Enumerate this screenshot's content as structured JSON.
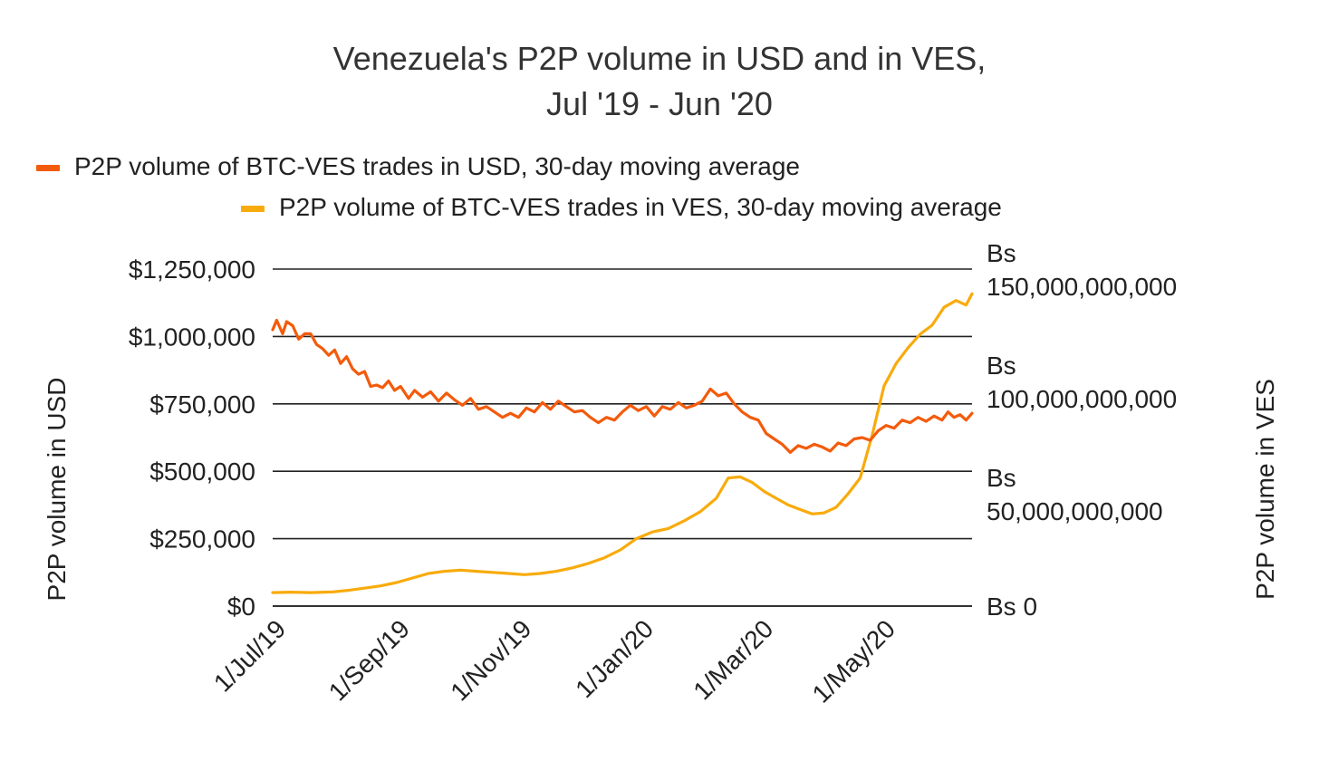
{
  "chart_data": {
    "type": "line",
    "title": [
      "Venezuela's P2P volume in USD and in VES,",
      "Jul '19 - Jun '20"
    ],
    "legend_position": "top",
    "grid": true,
    "x_axis": {
      "range": [
        "2019-07-01",
        "2020-06-15"
      ],
      "tick_dates": [
        "2019-07-01",
        "2019-09-01",
        "2019-11-01",
        "2020-01-01",
        "2020-03-01",
        "2020-05-01"
      ],
      "tick_labels": [
        "1/Jul/19",
        "1/Sep/19",
        "1/Nov/19",
        "1/Jan/20",
        "1/Mar/20",
        "1/May/20"
      ]
    },
    "y_axis_left": {
      "label": "P2P volume in USD",
      "range": [
        0,
        1250000
      ],
      "ticks": [
        0,
        250000,
        500000,
        750000,
        1000000,
        1250000
      ],
      "tick_labels": [
        "$0",
        "$250,000",
        "$500,000",
        "$750,000",
        "$1,000,000",
        "$1,250,000"
      ]
    },
    "y_axis_right": {
      "label": "P2P volume in VES",
      "range": [
        0,
        150000000000
      ],
      "ticks": [
        0,
        50000000000,
        100000000000,
        150000000000
      ],
      "tick_labels": [
        [
          "Bs 0"
        ],
        [
          "Bs",
          "50,000,000,000"
        ],
        [
          "Bs",
          "100,000,000,000"
        ],
        [
          "Bs",
          "150,000,000,000"
        ]
      ]
    },
    "series": [
      {
        "name": "P2P volume of BTC-VES trades in USD, 30-day moving average",
        "axis": "left",
        "color": "#f35b0c",
        "points": [
          [
            "2019-07-01",
            1025000
          ],
          [
            "2019-07-03",
            1060000
          ],
          [
            "2019-07-06",
            1010000
          ],
          [
            "2019-07-08",
            1055000
          ],
          [
            "2019-07-11",
            1040000
          ],
          [
            "2019-07-14",
            990000
          ],
          [
            "2019-07-17",
            1010000
          ],
          [
            "2019-07-20",
            1010000
          ],
          [
            "2019-07-23",
            970000
          ],
          [
            "2019-07-26",
            955000
          ],
          [
            "2019-07-29",
            930000
          ],
          [
            "2019-08-01",
            950000
          ],
          [
            "2019-08-04",
            900000
          ],
          [
            "2019-08-07",
            925000
          ],
          [
            "2019-08-10",
            880000
          ],
          [
            "2019-08-13",
            860000
          ],
          [
            "2019-08-16",
            870000
          ],
          [
            "2019-08-19",
            815000
          ],
          [
            "2019-08-22",
            820000
          ],
          [
            "2019-08-25",
            810000
          ],
          [
            "2019-08-28",
            835000
          ],
          [
            "2019-08-31",
            800000
          ],
          [
            "2019-09-03",
            815000
          ],
          [
            "2019-09-07",
            770000
          ],
          [
            "2019-09-10",
            800000
          ],
          [
            "2019-09-14",
            775000
          ],
          [
            "2019-09-18",
            795000
          ],
          [
            "2019-09-22",
            760000
          ],
          [
            "2019-09-26",
            790000
          ],
          [
            "2019-09-30",
            765000
          ],
          [
            "2019-10-04",
            745000
          ],
          [
            "2019-10-08",
            770000
          ],
          [
            "2019-10-12",
            730000
          ],
          [
            "2019-10-16",
            740000
          ],
          [
            "2019-10-20",
            720000
          ],
          [
            "2019-10-24",
            700000
          ],
          [
            "2019-10-28",
            715000
          ],
          [
            "2019-11-01",
            700000
          ],
          [
            "2019-11-05",
            735000
          ],
          [
            "2019-11-09",
            720000
          ],
          [
            "2019-11-13",
            755000
          ],
          [
            "2019-11-17",
            730000
          ],
          [
            "2019-11-21",
            760000
          ],
          [
            "2019-11-25",
            740000
          ],
          [
            "2019-11-29",
            720000
          ],
          [
            "2019-12-03",
            725000
          ],
          [
            "2019-12-07",
            700000
          ],
          [
            "2019-12-11",
            680000
          ],
          [
            "2019-12-15",
            700000
          ],
          [
            "2019-12-19",
            690000
          ],
          [
            "2019-12-23",
            720000
          ],
          [
            "2019-12-27",
            745000
          ],
          [
            "2019-12-31",
            725000
          ],
          [
            "2020-01-04",
            740000
          ],
          [
            "2020-01-08",
            705000
          ],
          [
            "2020-01-12",
            740000
          ],
          [
            "2020-01-16",
            730000
          ],
          [
            "2020-01-20",
            755000
          ],
          [
            "2020-01-24",
            735000
          ],
          [
            "2020-01-28",
            745000
          ],
          [
            "2020-02-01",
            760000
          ],
          [
            "2020-02-05",
            805000
          ],
          [
            "2020-02-09",
            780000
          ],
          [
            "2020-02-13",
            790000
          ],
          [
            "2020-02-17",
            750000
          ],
          [
            "2020-02-21",
            720000
          ],
          [
            "2020-02-25",
            700000
          ],
          [
            "2020-02-29",
            690000
          ],
          [
            "2020-03-04",
            640000
          ],
          [
            "2020-03-08",
            620000
          ],
          [
            "2020-03-12",
            600000
          ],
          [
            "2020-03-16",
            570000
          ],
          [
            "2020-03-20",
            595000
          ],
          [
            "2020-03-24",
            585000
          ],
          [
            "2020-03-28",
            600000
          ],
          [
            "2020-04-01",
            590000
          ],
          [
            "2020-04-05",
            575000
          ],
          [
            "2020-04-09",
            605000
          ],
          [
            "2020-04-13",
            595000
          ],
          [
            "2020-04-17",
            620000
          ],
          [
            "2020-04-21",
            625000
          ],
          [
            "2020-04-25",
            615000
          ],
          [
            "2020-04-29",
            650000
          ],
          [
            "2020-05-03",
            670000
          ],
          [
            "2020-05-07",
            660000
          ],
          [
            "2020-05-11",
            690000
          ],
          [
            "2020-05-15",
            680000
          ],
          [
            "2020-05-19",
            700000
          ],
          [
            "2020-05-23",
            685000
          ],
          [
            "2020-05-27",
            705000
          ],
          [
            "2020-05-31",
            690000
          ],
          [
            "2020-06-03",
            720000
          ],
          [
            "2020-06-06",
            700000
          ],
          [
            "2020-06-09",
            710000
          ],
          [
            "2020-06-12",
            690000
          ],
          [
            "2020-06-15",
            715000
          ]
        ]
      },
      {
        "name": "P2P volume of BTC-VES trades in VES, 30-day moving average",
        "axis": "right",
        "color": "#f8ab0c",
        "points": [
          [
            "2019-07-01",
            6000000000
          ],
          [
            "2019-07-10",
            6200000000
          ],
          [
            "2019-07-20",
            6000000000
          ],
          [
            "2019-07-31",
            6300000000
          ],
          [
            "2019-08-08",
            7000000000
          ],
          [
            "2019-08-16",
            8000000000
          ],
          [
            "2019-08-24",
            9000000000
          ],
          [
            "2019-09-01",
            10500000000
          ],
          [
            "2019-09-09",
            12500000000
          ],
          [
            "2019-09-17",
            14500000000
          ],
          [
            "2019-09-25",
            15500000000
          ],
          [
            "2019-10-03",
            16000000000
          ],
          [
            "2019-10-11",
            15500000000
          ],
          [
            "2019-10-19",
            15000000000
          ],
          [
            "2019-10-27",
            14500000000
          ],
          [
            "2019-11-04",
            14000000000
          ],
          [
            "2019-11-12",
            14500000000
          ],
          [
            "2019-11-20",
            15500000000
          ],
          [
            "2019-11-28",
            17000000000
          ],
          [
            "2019-12-06",
            19000000000
          ],
          [
            "2019-12-14",
            21500000000
          ],
          [
            "2019-12-22",
            25000000000
          ],
          [
            "2019-12-30",
            30000000000
          ],
          [
            "2020-01-07",
            33000000000
          ],
          [
            "2020-01-15",
            34500000000
          ],
          [
            "2020-01-23",
            38000000000
          ],
          [
            "2020-01-31",
            42000000000
          ],
          [
            "2020-02-08",
            48000000000
          ],
          [
            "2020-02-14",
            57000000000
          ],
          [
            "2020-02-20",
            57500000000
          ],
          [
            "2020-02-26",
            55000000000
          ],
          [
            "2020-03-03",
            51000000000
          ],
          [
            "2020-03-09",
            48000000000
          ],
          [
            "2020-03-15",
            45000000000
          ],
          [
            "2020-03-21",
            43000000000
          ],
          [
            "2020-03-27",
            41000000000
          ],
          [
            "2020-04-02",
            41500000000
          ],
          [
            "2020-04-08",
            44000000000
          ],
          [
            "2020-04-14",
            50000000000
          ],
          [
            "2020-04-20",
            57000000000
          ],
          [
            "2020-04-26",
            76000000000
          ],
          [
            "2020-05-02",
            98000000000
          ],
          [
            "2020-05-08",
            108000000000
          ],
          [
            "2020-05-14",
            115000000000
          ],
          [
            "2020-05-20",
            121000000000
          ],
          [
            "2020-05-26",
            125000000000
          ],
          [
            "2020-06-01",
            133000000000
          ],
          [
            "2020-06-07",
            136000000000
          ],
          [
            "2020-06-12",
            134000000000
          ],
          [
            "2020-06-15",
            139000000000
          ]
        ]
      }
    ]
  }
}
